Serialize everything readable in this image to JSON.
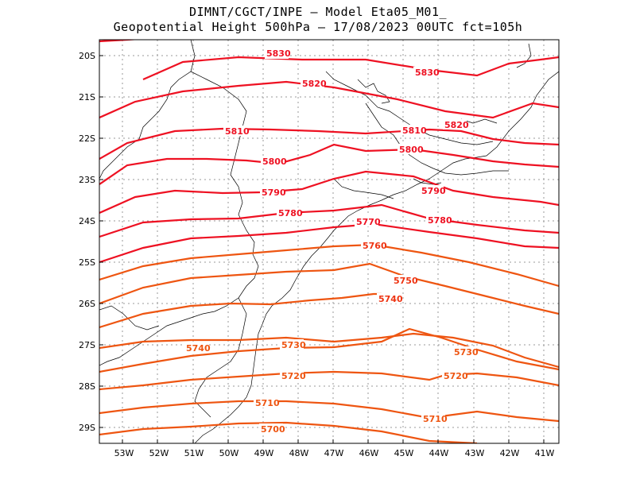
{
  "title": {
    "line1": "DIMNT/CGCT/INPE —  Model Eta05_M01_",
    "line2": "Geopotential Height 500hPa —  17/08/2023 00UTC fct=105h"
  },
  "map": {
    "lon_range": [
      -53.6,
      -40.6
    ],
    "lat_range": [
      -20.0,
      -29.4
    ],
    "lat_labels": [
      "20S",
      "21S",
      "22S",
      "23S",
      "24S",
      "25S",
      "26S",
      "27S",
      "28S",
      "29S"
    ],
    "lon_labels": [
      "53W",
      "52W",
      "51W",
      "50W",
      "49W",
      "48W",
      "47W",
      "46W",
      "45W",
      "44W",
      "43W",
      "42W",
      "41W"
    ],
    "contour_labels": [
      "5830",
      "5830",
      "5820",
      "5820",
      "5810",
      "5810",
      "5800",
      "5800",
      "5790",
      "5790",
      "5780",
      "5780",
      "5770",
      "5760",
      "5750",
      "5740",
      "5740",
      "5730",
      "5730",
      "5720",
      "5720",
      "5710",
      "5710",
      "5700"
    ],
    "colors": {
      "high": "#ee1122",
      "low": "#ee5511",
      "grid": "#999999",
      "coast": "#000000"
    }
  }
}
